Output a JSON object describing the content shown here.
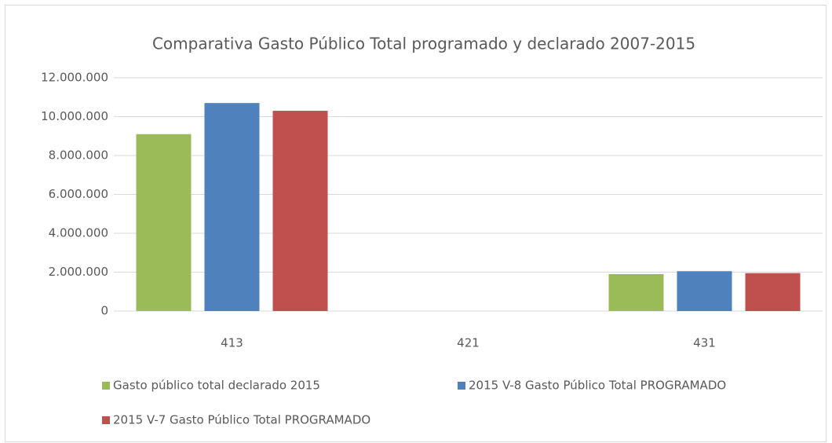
{
  "chart_data": {
    "type": "bar",
    "title": "Comparativa Gasto Público Total programado y declarado 2007-2015",
    "categories": [
      "413",
      "421",
      "431"
    ],
    "series": [
      {
        "name": "Gasto público total declarado 2015",
        "color": "#9bbb59",
        "values": [
          9100000,
          0,
          1900000
        ]
      },
      {
        "name": "2015 V-8 Gasto Público Total PROGRAMADO",
        "color": "#4f81bd",
        "values": [
          10700000,
          0,
          2050000
        ]
      },
      {
        "name": "2015 V-7 Gasto Público Total PROGRAMADO",
        "color": "#c0504d",
        "values": [
          10300000,
          0,
          1950000
        ]
      }
    ],
    "ylim": [
      0,
      12000000
    ],
    "yticks": [
      0,
      {
        "value": 2000000,
        "label": "2.000.000"
      },
      {
        "value": 4000000,
        "label": "4.000.000"
      },
      {
        "value": 6000000,
        "label": "6.000.000"
      },
      {
        "value": 8000000,
        "label": "8.000.000"
      },
      {
        "value": 10000000,
        "label": "10.000.000"
      },
      {
        "value": 12000000,
        "label": "12.000.000"
      }
    ],
    "grid": true,
    "legend": "bottom"
  }
}
